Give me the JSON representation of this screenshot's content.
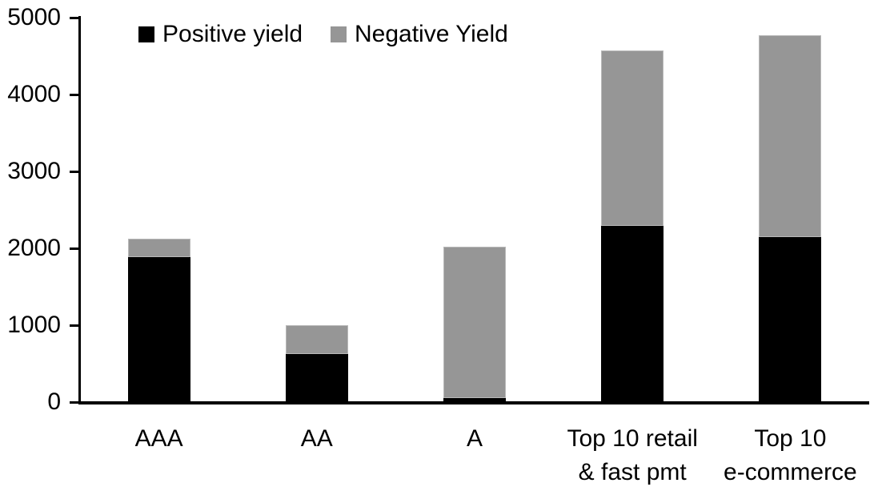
{
  "chart_data": {
    "type": "bar",
    "stacked": true,
    "title": "",
    "categories": [
      "AAA",
      "AA",
      "A",
      "Top 10 retail & fast pmt",
      "Top 10 e-commerce"
    ],
    "category_label_lines": [
      [
        "AAA"
      ],
      [
        "AA"
      ],
      [
        "A"
      ],
      [
        "Top 10 retail",
        "& fast pmt"
      ],
      [
        "Top 10",
        "e-commerce"
      ]
    ],
    "series": [
      {
        "name": "Positive yield",
        "color": "#000000",
        "values": [
          1890,
          625,
          50,
          2290,
          2150
        ]
      },
      {
        "name": "Negative Yield",
        "color": "#969696",
        "values": [
          240,
          380,
          1975,
          2280,
          2620
        ]
      }
    ],
    "xlabel": "",
    "ylabel": "",
    "ylim": [
      0,
      5000
    ],
    "yticks": [
      0,
      1000,
      2000,
      3000,
      4000,
      5000
    ],
    "legend_position": "top",
    "grid": false,
    "axis_color": "#000000",
    "background": "#ffffff"
  }
}
